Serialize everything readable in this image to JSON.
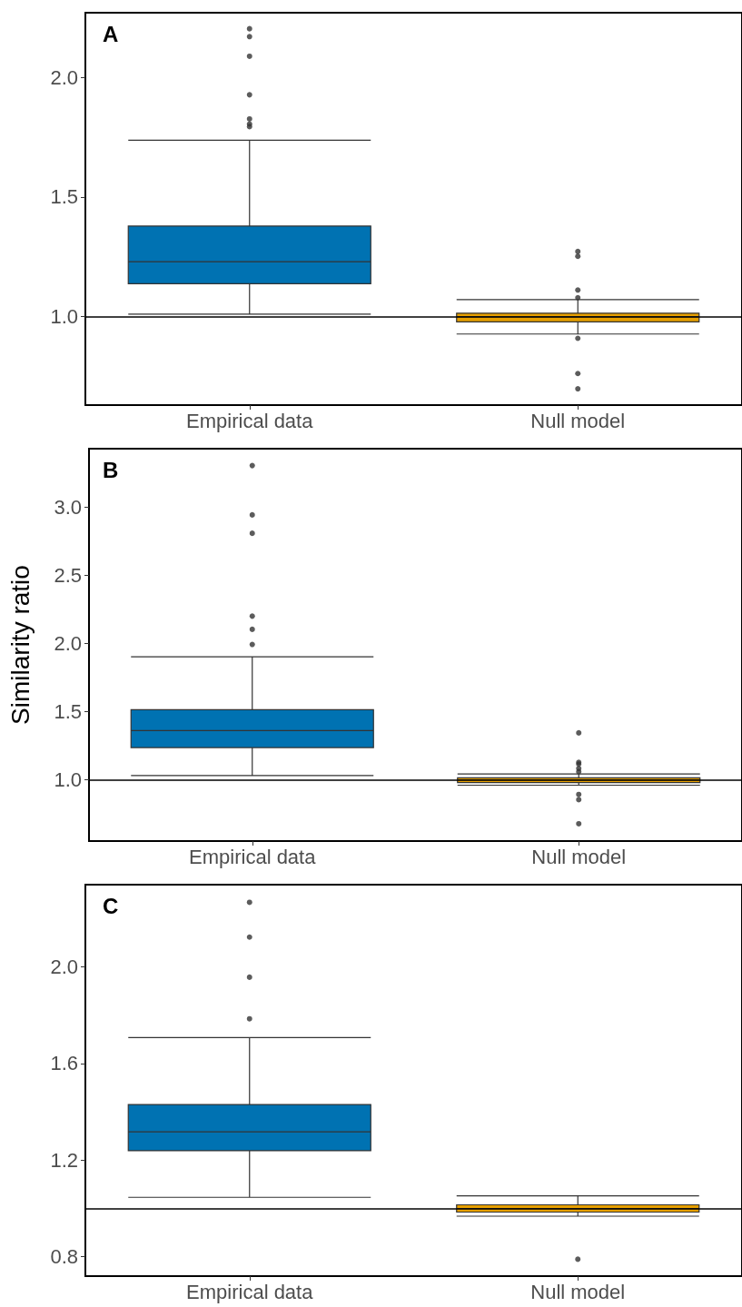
{
  "chart_data": [
    {
      "type": "box",
      "title": "A",
      "categories": [
        "Empirical data",
        "Null model"
      ],
      "colors": [
        "#0072b2",
        "#e69f00"
      ],
      "ylim": [
        0.63,
        2.27
      ],
      "yticks": [
        {
          "value": 1,
          "label": "1.0"
        },
        {
          "value": 1.5,
          "label": "1.5"
        },
        {
          "value": 2,
          "label": "2.0"
        }
      ],
      "grid": false,
      "boxes": [
        {
          "low": 1.01,
          "q1": 1.137,
          "median": 1.229,
          "q3": 1.378,
          "high": 1.737,
          "outliers": [
            2.203,
            2.17,
            2.088,
            1.927,
            1.826,
            1.805,
            1.794
          ]
        },
        {
          "low": 0.927,
          "q1": 0.978,
          "median": 1.0,
          "q3": 1.014,
          "high": 1.071,
          "outliers": [
            1.272,
            1.252,
            1.111,
            1.079,
            0.909,
            0.762,
            0.698
          ]
        }
      ],
      "ref_lines": [
        {
          "axis": "y",
          "value": 1,
          "color": "#000000"
        }
      ]
    },
    {
      "type": "box",
      "title": "B",
      "ylabel": "Similarity ratio",
      "categories": [
        "Empirical data",
        "Null model"
      ],
      "colors": [
        "#0072b2",
        "#e69f00"
      ],
      "ylim": [
        0.55,
        3.43
      ],
      "yticks": [
        {
          "value": 1,
          "label": "1.0"
        },
        {
          "value": 1.5,
          "label": "1.5"
        },
        {
          "value": 2,
          "label": "2.0"
        },
        {
          "value": 2.5,
          "label": "2.5"
        },
        {
          "value": 3,
          "label": "3.0"
        }
      ],
      "grid": false,
      "boxes": [
        {
          "low": 1.031,
          "q1": 1.236,
          "median": 1.361,
          "q3": 1.514,
          "high": 1.903,
          "outliers": [
            3.306,
            2.944,
            2.809,
            2.201,
            2.104,
            1.993
          ]
        },
        {
          "low": 0.96,
          "q1": 0.979,
          "median": 1.0,
          "q3": 1.014,
          "high": 1.042,
          "outliers": [
            1.344,
            1.128,
            1.115,
            1.083,
            1.059,
            0.892,
            0.854,
            0.677
          ]
        }
      ],
      "ref_lines": [
        {
          "axis": "y",
          "value": 1,
          "color": "#000000"
        }
      ]
    },
    {
      "type": "box",
      "title": "C",
      "categories": [
        "Empirical data",
        "Null model"
      ],
      "colors": [
        "#0072b2",
        "#e69f00"
      ],
      "ylim": [
        0.72,
        2.34
      ],
      "yticks": [
        {
          "value": 0.8,
          "label": "0.8"
        },
        {
          "value": 1.2,
          "label": "1.2"
        },
        {
          "value": 1.6,
          "label": "1.6"
        },
        {
          "value": 2,
          "label": "2.0"
        }
      ],
      "grid": false,
      "boxes": [
        {
          "low": 1.046,
          "q1": 1.239,
          "median": 1.317,
          "q3": 1.43,
          "high": 1.707,
          "outliers": [
            2.267,
            2.123,
            1.957,
            1.785
          ]
        },
        {
          "low": 0.968,
          "q1": 0.985,
          "median": 1.0,
          "q3": 1.015,
          "high": 1.052,
          "outliers": [
            0.79
          ]
        }
      ],
      "ref_lines": [
        {
          "axis": "y",
          "value": 1,
          "color": "#000000"
        }
      ]
    }
  ]
}
